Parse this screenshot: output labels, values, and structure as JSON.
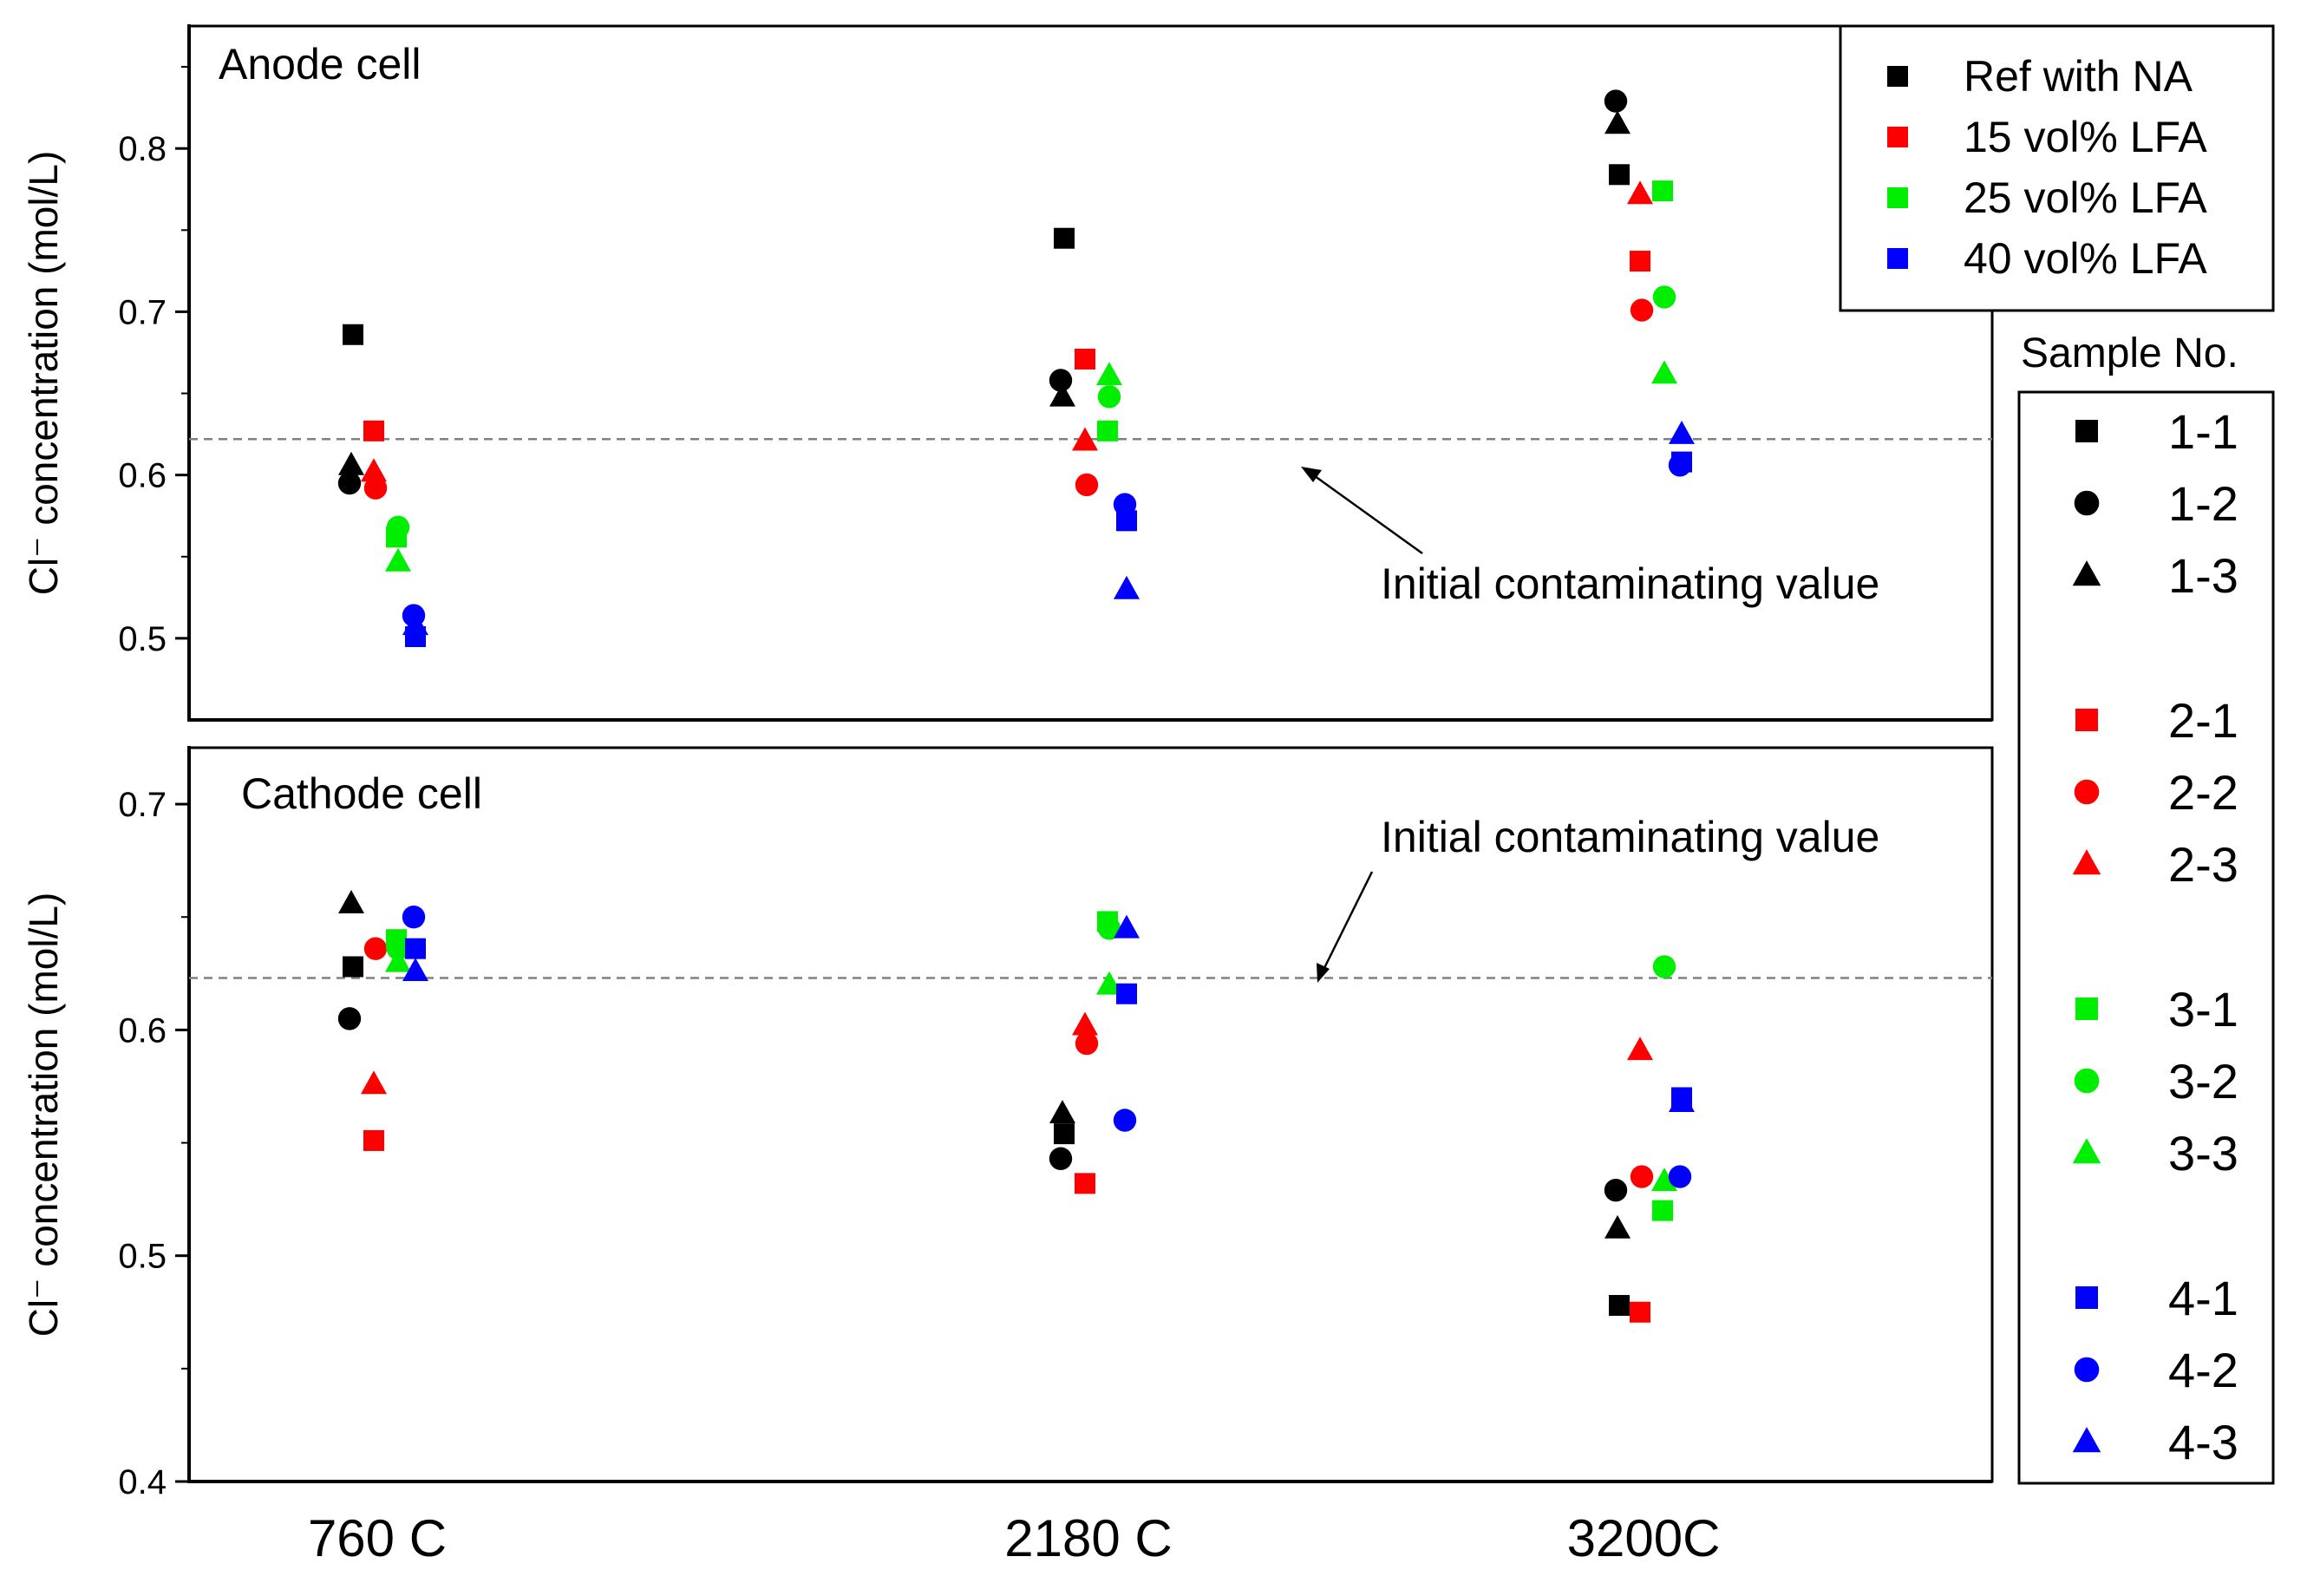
{
  "chart_data": {
    "type": "scatter",
    "categories": [
      "760 C",
      "2180 C",
      "3200C"
    ],
    "groups": [
      {
        "name": "Ref with  NA",
        "color": "#000000",
        "samples": [
          "1-1",
          "1-2",
          "1-3"
        ]
      },
      {
        "name": "15 vol% LFA",
        "color": "#ff0000",
        "samples": [
          "2-1",
          "2-2",
          "2-3"
        ]
      },
      {
        "name": "25 vol% LFA",
        "color": "#00ee00",
        "samples": [
          "3-1",
          "3-2",
          "3-3"
        ]
      },
      {
        "name": "40 vol% LFA",
        "color": "#0000ff",
        "samples": [
          "4-1",
          "4-2",
          "4-3"
        ]
      }
    ],
    "sample_legend_title": "Sample No.",
    "panels": [
      {
        "title": "Anode cell",
        "ylabel": "Cl⁻ concentration (mol/L)",
        "ylim": [
          0.45,
          0.875
        ],
        "yticks": [
          "0.5",
          "0.6",
          "0.7",
          "0.8"
        ],
        "reference_value": 0.622,
        "annotation": "Initial contaminating value",
        "series": [
          {
            "sample": "1-1",
            "group": 0,
            "marker": "square",
            "values": [
              0.686,
              0.745,
              0.784
            ]
          },
          {
            "sample": "1-2",
            "group": 0,
            "marker": "circle",
            "values": [
              0.595,
              0.658,
              0.829
            ]
          },
          {
            "sample": "1-3",
            "group": 0,
            "marker": "triangle",
            "values": [
              0.606,
              0.648,
              0.815
            ]
          },
          {
            "sample": "2-1",
            "group": 1,
            "marker": "square",
            "values": [
              0.627,
              0.671,
              0.731
            ]
          },
          {
            "sample": "2-2",
            "group": 1,
            "marker": "circle",
            "values": [
              0.592,
              0.594,
              0.701
            ]
          },
          {
            "sample": "2-3",
            "group": 1,
            "marker": "triangle",
            "values": [
              0.602,
              0.621,
              0.772
            ]
          },
          {
            "sample": "3-1",
            "group": 2,
            "marker": "square",
            "values": [
              0.562,
              0.627,
              0.774
            ]
          },
          {
            "sample": "3-2",
            "group": 2,
            "marker": "circle",
            "values": [
              0.568,
              0.648,
              0.709
            ]
          },
          {
            "sample": "3-3",
            "group": 2,
            "marker": "triangle",
            "values": [
              0.547,
              0.661,
              0.662
            ]
          },
          {
            "sample": "4-1",
            "group": 3,
            "marker": "square",
            "values": [
              0.501,
              0.572,
              0.608
            ]
          },
          {
            "sample": "4-2",
            "group": 3,
            "marker": "circle",
            "values": [
              0.514,
              0.582,
              0.606
            ]
          },
          {
            "sample": "4-3",
            "group": 3,
            "marker": "triangle",
            "values": [
              0.508,
              0.53,
              0.625
            ]
          }
        ]
      },
      {
        "title": "Cathode cell",
        "ylabel": "Cl⁻ concentration (mol/L)",
        "ylim": [
          0.4,
          0.725
        ],
        "yticks": [
          "0.4",
          "0.5",
          "0.6",
          "0.7"
        ],
        "reference_value": 0.623,
        "annotation": "Initial contaminating value",
        "series": [
          {
            "sample": "1-1",
            "group": 0,
            "marker": "square",
            "values": [
              0.628,
              0.554,
              0.478
            ]
          },
          {
            "sample": "1-2",
            "group": 0,
            "marker": "circle",
            "values": [
              0.605,
              0.543,
              0.529
            ]
          },
          {
            "sample": "1-3",
            "group": 0,
            "marker": "triangle",
            "values": [
              0.656,
              0.563,
              0.512
            ]
          },
          {
            "sample": "2-1",
            "group": 1,
            "marker": "square",
            "values": [
              0.551,
              0.532,
              0.475
            ]
          },
          {
            "sample": "2-2",
            "group": 1,
            "marker": "circle",
            "values": [
              0.636,
              0.594,
              0.535
            ]
          },
          {
            "sample": "2-3",
            "group": 1,
            "marker": "triangle",
            "values": [
              0.576,
              0.602,
              0.591
            ]
          },
          {
            "sample": "3-1",
            "group": 2,
            "marker": "square",
            "values": [
              0.64,
              0.648,
              0.52
            ]
          },
          {
            "sample": "3-2",
            "group": 2,
            "marker": "circle",
            "values": [
              0.636,
              0.645,
              0.628
            ]
          },
          {
            "sample": "3-3",
            "group": 2,
            "marker": "triangle",
            "values": [
              0.63,
              0.62,
              0.533
            ]
          },
          {
            "sample": "4-1",
            "group": 3,
            "marker": "square",
            "values": [
              0.636,
              0.616,
              0.57
            ]
          },
          {
            "sample": "4-2",
            "group": 3,
            "marker": "circle",
            "values": [
              0.65,
              0.56,
              0.535
            ]
          },
          {
            "sample": "4-3",
            "group": 3,
            "marker": "triangle",
            "values": [
              0.626,
              0.645,
              0.568
            ]
          }
        ]
      }
    ]
  }
}
